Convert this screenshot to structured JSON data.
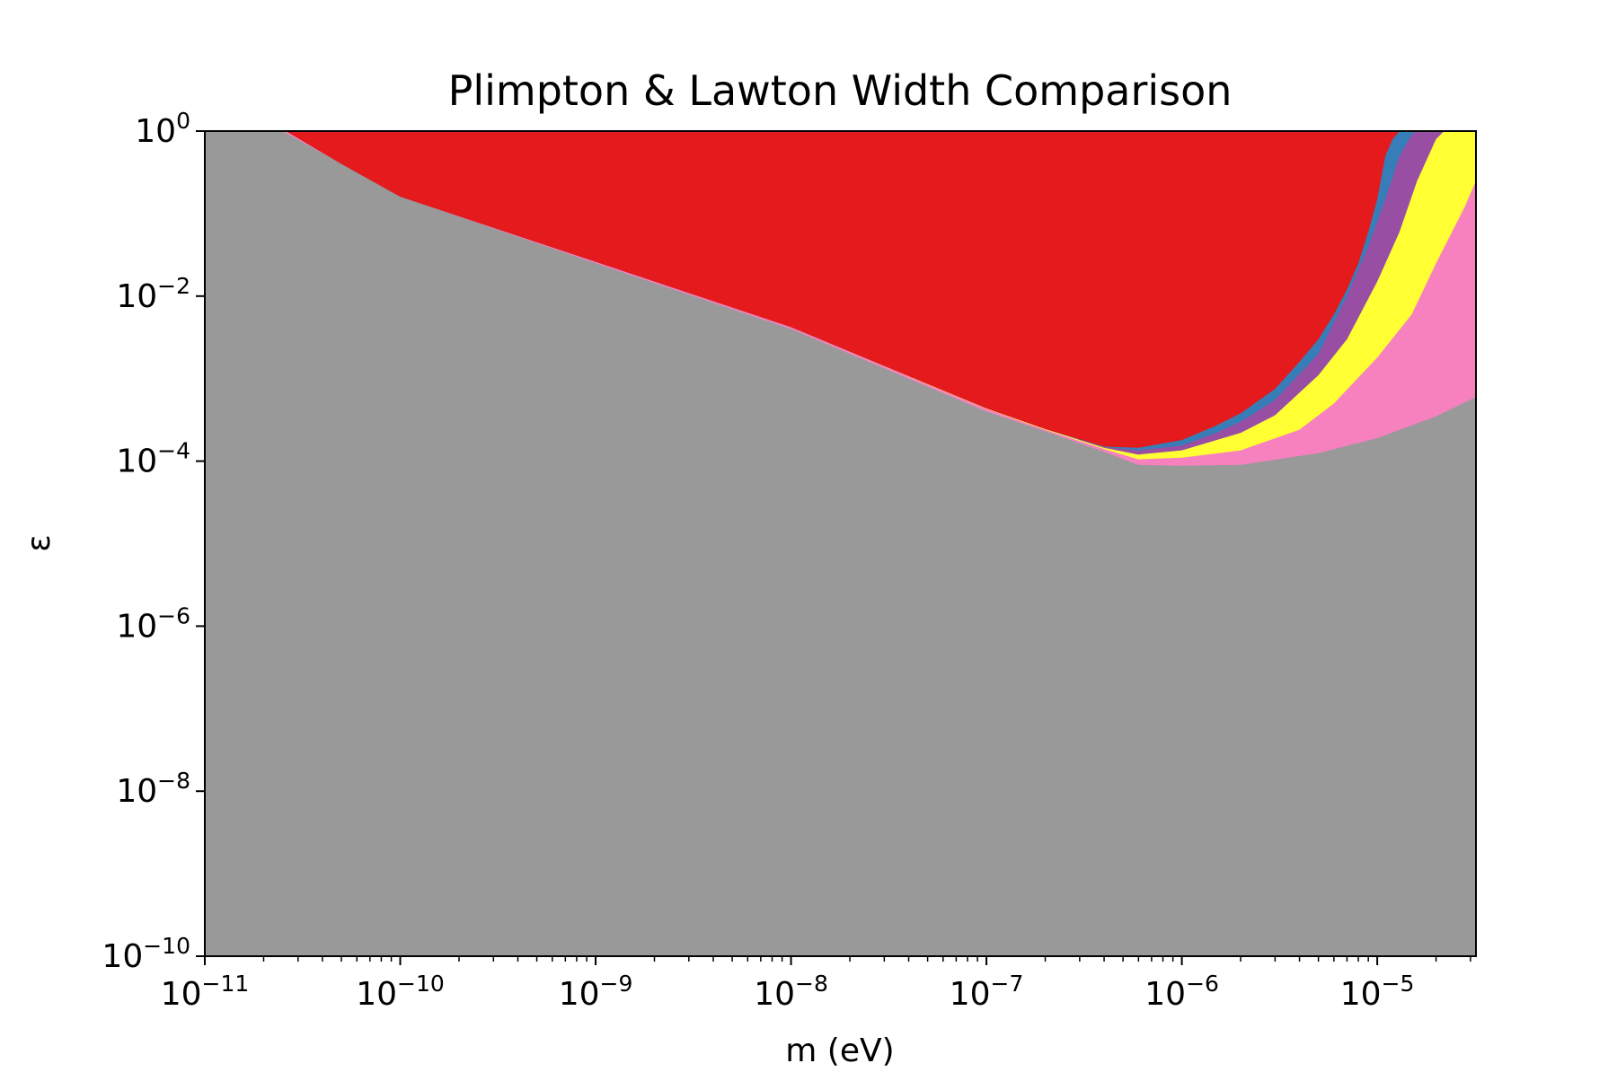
{
  "chart_data": {
    "type": "area",
    "title": "Plimpton & Lawton Width Comparison",
    "xlabel": "m (eV)",
    "ylabel": "ε",
    "x_scale": "log",
    "y_scale": "log",
    "xlim": [
      1e-11,
      3.2e-05
    ],
    "ylim": [
      1e-10,
      1
    ],
    "x_tick_labels": [
      {
        "value": 1e-11,
        "base": "10",
        "exp": "−11"
      },
      {
        "value": 1e-10,
        "base": "10",
        "exp": "−10"
      },
      {
        "value": 1e-09,
        "base": "10",
        "exp": "−9"
      },
      {
        "value": 1e-08,
        "base": "10",
        "exp": "−8"
      },
      {
        "value": 1e-07,
        "base": "10",
        "exp": "−7"
      },
      {
        "value": 1e-06,
        "base": "10",
        "exp": "−6"
      },
      {
        "value": 1e-05,
        "base": "10",
        "exp": "−5"
      }
    ],
    "y_tick_labels": [
      {
        "value": 1,
        "base": "10",
        "exp": "0"
      },
      {
        "value": 0.01,
        "base": "10",
        "exp": "−2"
      },
      {
        "value": 0.0001,
        "base": "10",
        "exp": "−4"
      },
      {
        "value": 1e-06,
        "base": "10",
        "exp": "−6"
      },
      {
        "value": 1e-08,
        "base": "10",
        "exp": "−8"
      },
      {
        "value": 1e-10,
        "base": "10",
        "exp": "−10"
      }
    ],
    "grid": false,
    "legend": "none",
    "background_color": "#999999",
    "regions": [
      {
        "color": "#f781bf",
        "lower_boundary": [
          [
            1e-11,
            1
          ],
          [
            2.5e-11,
            1
          ],
          [
            5e-11,
            0.4
          ],
          [
            1e-10,
            0.16
          ],
          [
            1e-09,
            0.025
          ],
          [
            1e-08,
            0.004
          ],
          [
            5e-08,
            0.0008
          ],
          [
            1e-07,
            0.0004
          ],
          [
            2e-07,
            0.00023
          ],
          [
            4e-07,
            0.00013
          ],
          [
            6e-07,
            9e-05
          ],
          [
            1e-06,
            8.8e-05
          ],
          [
            2e-06,
            9e-05
          ],
          [
            5e-06,
            0.000125
          ],
          [
            1e-05,
            0.00019
          ],
          [
            2e-05,
            0.00035
          ],
          [
            3.2e-05,
            0.0006
          ]
        ]
      },
      {
        "color": "#ffff33",
        "lower_boundary": [
          [
            1e-11,
            1
          ],
          [
            2.6e-11,
            1
          ],
          [
            5e-11,
            0.4
          ],
          [
            1e-10,
            0.16
          ],
          [
            1e-09,
            0.026
          ],
          [
            1e-08,
            0.0042
          ],
          [
            5e-08,
            0.00085
          ],
          [
            1e-07,
            0.00043
          ],
          [
            2e-07,
            0.00024
          ],
          [
            4e-07,
            0.00014
          ],
          [
            6e-07,
            0.000105
          ],
          [
            1e-06,
            0.00011
          ],
          [
            2e-06,
            0.000135
          ],
          [
            4e-06,
            0.00024
          ],
          [
            6e-06,
            0.0005
          ],
          [
            1e-05,
            0.0018
          ],
          [
            1.5e-05,
            0.006
          ],
          [
            2e-05,
            0.025
          ],
          [
            2.8e-05,
            0.12
          ],
          [
            3.2e-05,
            0.25
          ]
        ]
      },
      {
        "color": "#984ea3",
        "lower_boundary": [
          [
            1e-11,
            1
          ],
          [
            2.6e-11,
            1
          ],
          [
            5e-11,
            0.4
          ],
          [
            1e-10,
            0.16
          ],
          [
            1e-09,
            0.026
          ],
          [
            1e-08,
            0.0042
          ],
          [
            5e-08,
            0.00086
          ],
          [
            1e-07,
            0.000435
          ],
          [
            2e-07,
            0.000245
          ],
          [
            4e-07,
            0.000145
          ],
          [
            6e-07,
            0.00012
          ],
          [
            1e-06,
            0.000135
          ],
          [
            2e-06,
            0.00022
          ],
          [
            3e-06,
            0.00036
          ],
          [
            5e-06,
            0.0011
          ],
          [
            7e-06,
            0.003
          ],
          [
            1e-05,
            0.015
          ],
          [
            1.3e-05,
            0.06
          ],
          [
            1.6e-05,
            0.25
          ],
          [
            2e-05,
            0.8
          ],
          [
            2.2e-05,
            1
          ],
          [
            3.2e-05,
            1
          ]
        ]
      },
      {
        "color": "#377eb8",
        "lower_boundary": [
          [
            1e-11,
            1
          ],
          [
            2.6e-11,
            1
          ],
          [
            5e-11,
            0.4
          ],
          [
            1e-10,
            0.16
          ],
          [
            1e-09,
            0.026
          ],
          [
            1e-08,
            0.0042
          ],
          [
            5e-08,
            0.00086
          ],
          [
            1e-07,
            0.000435
          ],
          [
            2e-07,
            0.000245
          ],
          [
            4e-07,
            0.000148
          ],
          [
            6e-07,
            0.000135
          ],
          [
            1e-06,
            0.000155
          ],
          [
            1.5e-06,
            0.00022
          ],
          [
            2e-06,
            0.0003
          ],
          [
            3e-06,
            0.00055
          ],
          [
            5e-06,
            0.002
          ],
          [
            7e-06,
            0.01
          ],
          [
            9e-06,
            0.04
          ],
          [
            1.1e-05,
            0.15
          ],
          [
            1.3e-05,
            0.5
          ],
          [
            1.5e-05,
            0.9
          ],
          [
            1.6e-05,
            1
          ],
          [
            3.2e-05,
            1
          ]
        ]
      },
      {
        "color": "#e41a1c",
        "lower_boundary": [
          [
            1e-11,
            1
          ],
          [
            2.6e-11,
            1
          ],
          [
            5e-11,
            0.4
          ],
          [
            1e-10,
            0.16
          ],
          [
            1e-09,
            0.026
          ],
          [
            1e-08,
            0.0042
          ],
          [
            5e-08,
            0.00086
          ],
          [
            1e-07,
            0.000435
          ],
          [
            2e-07,
            0.000245
          ],
          [
            4e-07,
            0.00015
          ],
          [
            6e-07,
            0.000145
          ],
          [
            1e-06,
            0.00018
          ],
          [
            1.5e-06,
            0.00027
          ],
          [
            2e-06,
            0.00038
          ],
          [
            3e-06,
            0.00075
          ],
          [
            4e-06,
            0.0016
          ],
          [
            5e-06,
            0.003
          ],
          [
            6e-06,
            0.006
          ],
          [
            7e-06,
            0.012
          ],
          [
            8e-06,
            0.025
          ],
          [
            9e-06,
            0.06
          ],
          [
            1e-05,
            0.15
          ],
          [
            1.1e-05,
            0.5
          ],
          [
            1.2e-05,
            0.8
          ],
          [
            1.3e-05,
            1
          ],
          [
            3.2e-05,
            1
          ]
        ]
      }
    ]
  }
}
